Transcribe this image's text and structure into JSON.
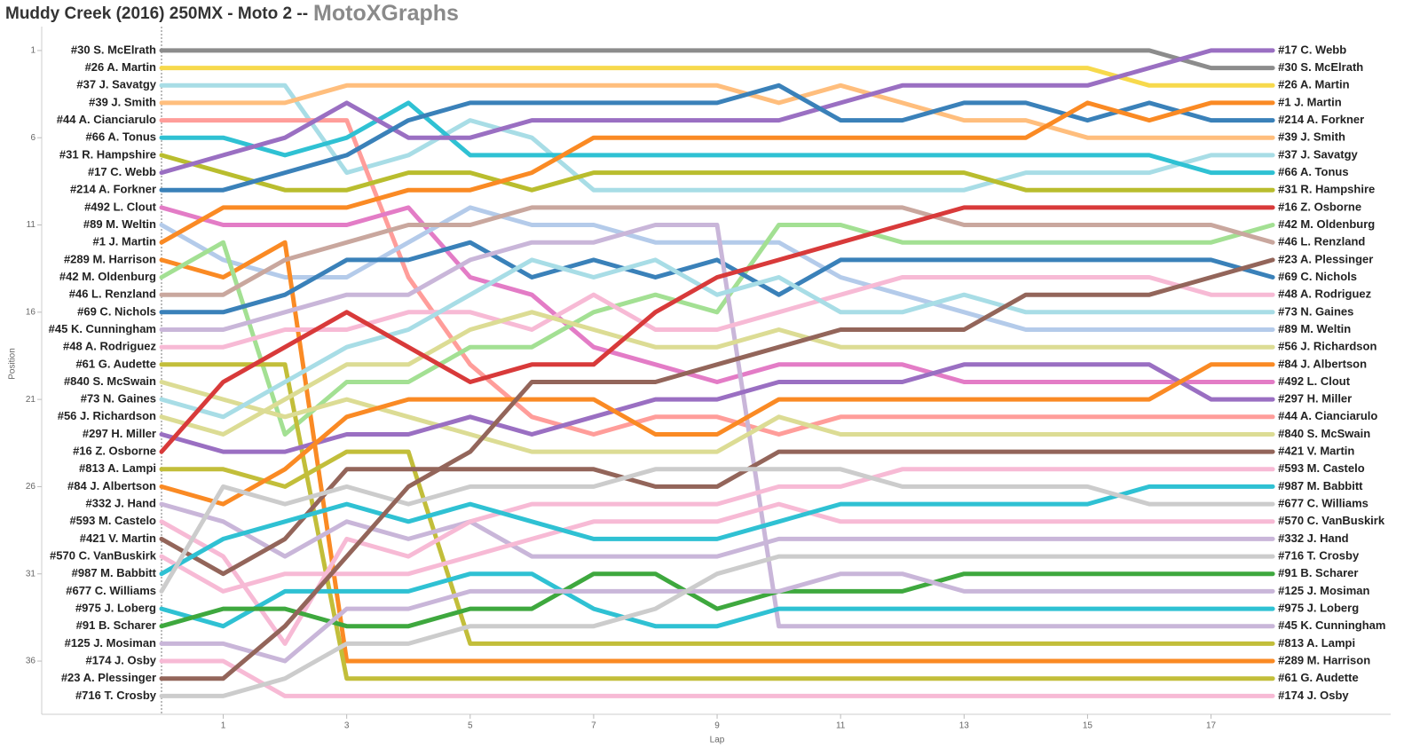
{
  "chart_data": {
    "type": "line",
    "title": "Muddy Creek (2016) 250MX - Moto 2 --",
    "brand": "MotoXGraphs",
    "x_label": "Lap",
    "y_label": "Position",
    "x": [
      0,
      1,
      2,
      3,
      4,
      5,
      6,
      7,
      8,
      9,
      10,
      11,
      12,
      13,
      14,
      15,
      16,
      17,
      18
    ],
    "xlim": [
      -1.94,
      19.91
    ],
    "xticks": [
      1,
      3,
      5,
      7,
      9,
      11,
      13,
      15,
      17
    ],
    "ylim": [
      39.05,
      -0.37
    ],
    "yticks": [
      1,
      6,
      11,
      16,
      21,
      26,
      31,
      36
    ],
    "series": [
      {
        "name": "#30 S. McElrath",
        "color": "#8c8c8c",
        "values": [
          1,
          1,
          1,
          1,
          1,
          1,
          1,
          1,
          1,
          1,
          1,
          1,
          1,
          1,
          1,
          1,
          1,
          2,
          2
        ]
      },
      {
        "name": "#26 A. Martin",
        "color": "#f7d94c",
        "values": [
          2,
          2,
          2,
          2,
          2,
          2,
          2,
          2,
          2,
          2,
          2,
          2,
          2,
          2,
          2,
          2,
          3,
          3,
          3
        ]
      },
      {
        "name": "#37 J. Savatgy",
        "color": "#a8dde6",
        "values": [
          3,
          3,
          3,
          8,
          7,
          5,
          6,
          9,
          9,
          9,
          9,
          9,
          9,
          9,
          8,
          8,
          8,
          7,
          7
        ]
      },
      {
        "name": "#39 J. Smith",
        "color": "#ffbe7d",
        "values": [
          4,
          4,
          4,
          3,
          3,
          3,
          3,
          3,
          3,
          3,
          4,
          3,
          4,
          5,
          5,
          6,
          6,
          6,
          6
        ]
      },
      {
        "name": "#44 A. Cianciarulo",
        "color": "#ff9d9a",
        "values": [
          5,
          5,
          5,
          5,
          14,
          19,
          22,
          23,
          22,
          22,
          23,
          22,
          22,
          22,
          22,
          22,
          22,
          22,
          22
        ]
      },
      {
        "name": "#66 A. Tonus",
        "color": "#2fc1d3",
        "values": [
          6,
          6,
          7,
          6,
          4,
          7,
          7,
          7,
          7,
          7,
          7,
          7,
          7,
          7,
          7,
          7,
          7,
          8,
          8
        ]
      },
      {
        "name": "#31 R. Hampshire",
        "color": "#b9bd2e",
        "values": [
          7,
          8,
          9,
          9,
          8,
          8,
          9,
          8,
          8,
          8,
          8,
          8,
          8,
          8,
          9,
          9,
          9,
          9,
          9
        ]
      },
      {
        "name": "#17 C. Webb",
        "color": "#9a6fc2",
        "values": [
          8,
          7,
          6,
          4,
          6,
          6,
          5,
          5,
          5,
          5,
          5,
          4,
          3,
          3,
          3,
          3,
          2,
          1,
          1
        ]
      },
      {
        "name": "#214 A. Forkner",
        "color": "#3a81b9",
        "values": [
          9,
          9,
          8,
          7,
          5,
          4,
          4,
          4,
          4,
          4,
          3,
          5,
          5,
          4,
          4,
          5,
          4,
          5,
          5
        ]
      },
      {
        "name": "#492 L. Clout",
        "color": "#e37cc6",
        "values": [
          10,
          11,
          11,
          11,
          10,
          14,
          15,
          18,
          19,
          20,
          19,
          19,
          19,
          20,
          20,
          20,
          20,
          20,
          20
        ]
      },
      {
        "name": "#89 M. Weltin",
        "color": "#b4cbea",
        "values": [
          11,
          13,
          14,
          14,
          12,
          10,
          11,
          11,
          12,
          12,
          12,
          14,
          15,
          16,
          17,
          17,
          17,
          17,
          17
        ]
      },
      {
        "name": "#1 J. Martin",
        "color": "#fa8a24",
        "values": [
          12,
          10,
          10,
          10,
          9,
          9,
          8,
          6,
          6,
          6,
          6,
          6,
          6,
          6,
          6,
          4,
          5,
          4,
          4
        ]
      },
      {
        "name": "#289 M. Harrison",
        "color": "#fa8a24",
        "values": [
          13,
          14,
          12,
          36,
          36,
          36,
          36,
          36,
          36,
          36,
          36,
          36,
          36,
          36,
          36,
          36,
          36,
          36,
          36
        ]
      },
      {
        "name": "#42 M. Oldenburg",
        "color": "#a3e093",
        "values": [
          14,
          12,
          23,
          20,
          20,
          18,
          18,
          16,
          15,
          16,
          11,
          11,
          12,
          12,
          12,
          12,
          12,
          12,
          11
        ]
      },
      {
        "name": "#46 L. Renzland",
        "color": "#c9a79e",
        "values": [
          15,
          15,
          13,
          12,
          11,
          11,
          10,
          10,
          10,
          10,
          10,
          10,
          10,
          11,
          11,
          11,
          11,
          11,
          12
        ]
      },
      {
        "name": "#69 C. Nichols",
        "color": "#3a81b9",
        "values": [
          16,
          16,
          15,
          13,
          13,
          12,
          14,
          13,
          14,
          13,
          15,
          13,
          13,
          13,
          13,
          13,
          13,
          13,
          14
        ]
      },
      {
        "name": "#45 K. Cunningham",
        "color": "#c9b6d9",
        "values": [
          17,
          17,
          16,
          15,
          15,
          13,
          12,
          12,
          11,
          11,
          34,
          34,
          34,
          34,
          34,
          34,
          34,
          34,
          34
        ]
      },
      {
        "name": "#48 A. Rodriguez",
        "color": "#f7bad5",
        "values": [
          18,
          18,
          17,
          17,
          16,
          16,
          17,
          15,
          17,
          17,
          16,
          15,
          14,
          14,
          14,
          14,
          14,
          15,
          15
        ]
      },
      {
        "name": "#61 G. Audette",
        "color": "#c2be3a",
        "values": [
          19,
          19,
          19,
          37,
          37,
          37,
          37,
          37,
          37,
          37,
          37,
          37,
          37,
          37,
          37,
          37,
          37,
          37,
          37
        ]
      },
      {
        "name": "#840 S. McSwain",
        "color": "#dcdc94",
        "values": [
          20,
          21,
          22,
          21,
          22,
          23,
          24,
          24,
          24,
          24,
          22,
          23,
          23,
          23,
          23,
          23,
          23,
          23,
          23
        ]
      },
      {
        "name": "#73 N. Gaines",
        "color": "#a8dde6",
        "values": [
          21,
          22,
          20,
          18,
          17,
          15,
          13,
          14,
          13,
          15,
          14,
          16,
          16,
          15,
          16,
          16,
          16,
          16,
          16
        ]
      },
      {
        "name": "#56 J. Richardson",
        "color": "#dcdc94",
        "values": [
          22,
          23,
          21,
          19,
          19,
          17,
          16,
          17,
          18,
          18,
          17,
          18,
          18,
          18,
          18,
          18,
          18,
          18,
          18
        ]
      },
      {
        "name": "#297 H. Miller",
        "color": "#9a6fc2",
        "values": [
          23,
          24,
          24,
          23,
          23,
          22,
          23,
          22,
          21,
          21,
          20,
          20,
          20,
          19,
          19,
          19,
          19,
          21,
          21
        ]
      },
      {
        "name": "#16 Z. Osborne",
        "color": "#d83a3a",
        "values": [
          24,
          20,
          18,
          16,
          18,
          20,
          19,
          19,
          16,
          14,
          13,
          12,
          11,
          10,
          10,
          10,
          10,
          10,
          10
        ]
      },
      {
        "name": "#813 A. Lampi",
        "color": "#c2be3a",
        "values": [
          25,
          25,
          26,
          24,
          24,
          35,
          35,
          35,
          35,
          35,
          35,
          35,
          35,
          35,
          35,
          35,
          35,
          35,
          35
        ]
      },
      {
        "name": "#84 J. Albertson",
        "color": "#fa8a24",
        "values": [
          26,
          27,
          25,
          22,
          21,
          21,
          21,
          21,
          23,
          23,
          21,
          21,
          21,
          21,
          21,
          21,
          21,
          19,
          19
        ]
      },
      {
        "name": "#332 J. Hand",
        "color": "#c9b6d9",
        "values": [
          27,
          28,
          30,
          28,
          29,
          28,
          30,
          30,
          30,
          30,
          29,
          29,
          29,
          29,
          29,
          29,
          29,
          29,
          29
        ]
      },
      {
        "name": "#593 M. Castelo",
        "color": "#f7bad5",
        "values": [
          28,
          30,
          35,
          29,
          30,
          28,
          27,
          27,
          27,
          27,
          26,
          26,
          25,
          25,
          25,
          25,
          25,
          25,
          25
        ]
      },
      {
        "name": "#421 V. Martin",
        "color": "#93655a",
        "values": [
          29,
          31,
          29,
          25,
          25,
          25,
          25,
          25,
          26,
          26,
          24,
          24,
          24,
          24,
          24,
          24,
          24,
          24,
          24
        ]
      },
      {
        "name": "#570 C. VanBuskirk",
        "color": "#f7bad5",
        "values": [
          30,
          32,
          31,
          31,
          31,
          30,
          29,
          28,
          28,
          28,
          27,
          28,
          28,
          28,
          28,
          28,
          28,
          28,
          28
        ]
      },
      {
        "name": "#987 M. Babbitt",
        "color": "#2fc1d3",
        "values": [
          31,
          29,
          28,
          27,
          28,
          27,
          28,
          29,
          29,
          29,
          28,
          27,
          27,
          27,
          27,
          27,
          26,
          26,
          26
        ]
      },
      {
        "name": "#677 C. Williams",
        "color": "#cccccc",
        "values": [
          32,
          26,
          27,
          26,
          27,
          26,
          26,
          26,
          25,
          25,
          25,
          25,
          26,
          26,
          26,
          26,
          27,
          27,
          27
        ]
      },
      {
        "name": "#975 J. Loberg",
        "color": "#2fc1d3",
        "values": [
          33,
          34,
          32,
          32,
          32,
          31,
          31,
          33,
          34,
          34,
          33,
          33,
          33,
          33,
          33,
          33,
          33,
          33,
          33
        ]
      },
      {
        "name": "#91 B. Scharer",
        "color": "#3ea83e",
        "values": [
          34,
          33,
          33,
          34,
          34,
          33,
          33,
          31,
          31,
          33,
          32,
          32,
          32,
          31,
          31,
          31,
          31,
          31,
          31
        ]
      },
      {
        "name": "#125 J. Mosiman",
        "color": "#c9b6d9",
        "values": [
          35,
          35,
          36,
          33,
          33,
          32,
          32,
          32,
          32,
          32,
          32,
          31,
          31,
          32,
          32,
          32,
          32,
          32,
          32
        ]
      },
      {
        "name": "#174 J. Osby",
        "color": "#f7bad5",
        "values": [
          36,
          36,
          38,
          38,
          38,
          38,
          38,
          38,
          38,
          38,
          38,
          38,
          38,
          38,
          38,
          38,
          38,
          38,
          38
        ]
      },
      {
        "name": "#23 A. Plessinger",
        "color": "#93655a",
        "values": [
          37,
          37,
          34,
          30,
          26,
          24,
          20,
          20,
          20,
          19,
          18,
          17,
          17,
          17,
          15,
          15,
          15,
          14,
          13
        ]
      },
      {
        "name": "#716 T. Crosby",
        "color": "#cccccc",
        "values": [
          38,
          38,
          37,
          35,
          35,
          34,
          34,
          34,
          33,
          31,
          30,
          30,
          30,
          30,
          30,
          30,
          30,
          30,
          30
        ]
      }
    ]
  }
}
